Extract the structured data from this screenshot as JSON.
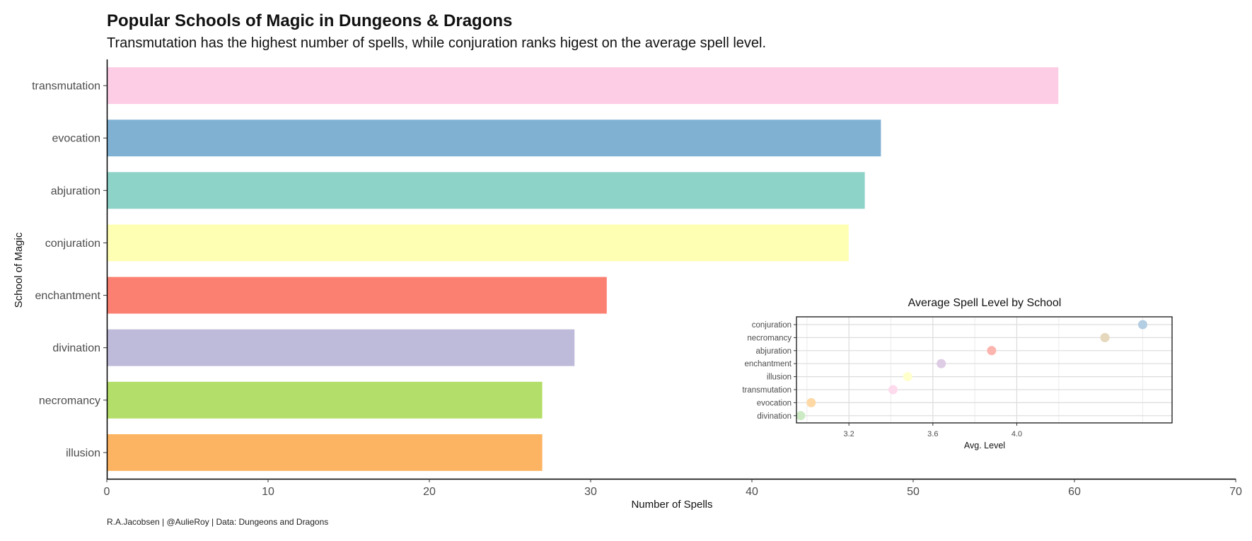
{
  "header": {
    "title": "Popular Schools of Magic in Dungeons & Dragons",
    "subtitle": "Transmutation has the highest number of spells, while conjuration ranks higest on the average spell level."
  },
  "caption": "R.A.Jacobsen | @AulieRoy | Data: Dungeons and Dragons",
  "chart_data": [
    {
      "type": "bar",
      "orientation": "horizontal",
      "title": "",
      "xlabel": "Number of Spells",
      "ylabel": "School of Magic",
      "xlim": [
        0,
        70
      ],
      "xticks": [
        0,
        10,
        20,
        30,
        40,
        50,
        60,
        70
      ],
      "grid": false,
      "categories": [
        "transmutation",
        "evocation",
        "abjuration",
        "conjuration",
        "enchantment",
        "divination",
        "necromancy",
        "illusion"
      ],
      "values": [
        59,
        48,
        47,
        46,
        31,
        29,
        27,
        27
      ],
      "colors": [
        "#FCCDE5",
        "#80B1D3",
        "#8DD3C7",
        "#FFFFB3",
        "#FB8072",
        "#BEBADA",
        "#B3DE69",
        "#FDB462"
      ]
    },
    {
      "type": "scatter",
      "title": "Average Spell Level by School",
      "xlabel": "Avg. Level",
      "ylabel": "",
      "xlim": [
        2.95,
        4.74
      ],
      "xticks": [
        3.2,
        3.6,
        4.0
      ],
      "grid": true,
      "categories": [
        "conjuration",
        "necromancy",
        "abjuration",
        "enchantment",
        "illusion",
        "transmutation",
        "evocation",
        "divination"
      ],
      "values": [
        4.6,
        4.42,
        3.88,
        3.64,
        3.48,
        3.41,
        3.02,
        2.97
      ],
      "colors": [
        "#B3CDE3",
        "#E5D8BD",
        "#FBB4AE",
        "#DECBE4",
        "#FFFFCC",
        "#FDDAEC",
        "#FED9A6",
        "#CCEBC5"
      ]
    }
  ]
}
